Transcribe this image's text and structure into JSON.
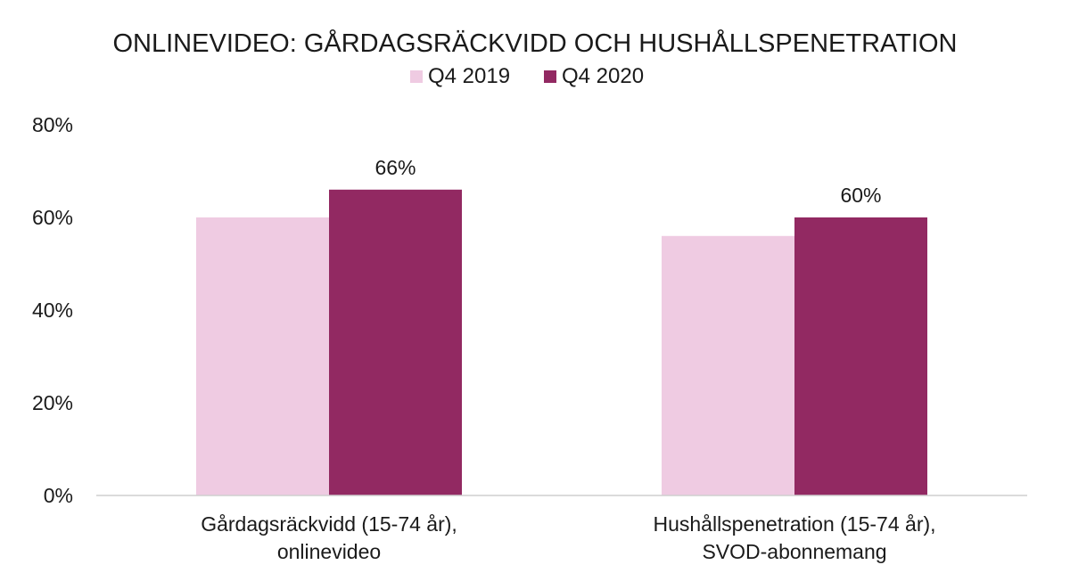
{
  "chart_data": {
    "type": "bar",
    "title": "ONLINEVIDEO: GÅRDAGSRÄCKVIDD OCH HUSHÅLLSPENETRATION",
    "categories": [
      [
        "Gårdagsräckvidd (15-74 år),",
        "onlinevideo"
      ],
      [
        "Hushållspenetration (15-74 år),",
        "SVOD-abonnemang"
      ]
    ],
    "series": [
      {
        "name": "Q4 2019",
        "values": [
          60,
          56
        ],
        "color": "#efcbe2",
        "data_labels": [
          "",
          ""
        ]
      },
      {
        "name": "Q4 2020",
        "values": [
          66,
          60
        ],
        "color": "#922962",
        "data_labels": [
          "66%",
          "60%"
        ]
      }
    ],
    "ylim": [
      0,
      80
    ],
    "yticks": [
      0,
      20,
      40,
      60,
      80
    ],
    "ytick_labels": [
      "0%",
      "20%",
      "40%",
      "60%",
      "80%"
    ],
    "grid": false,
    "legend_position": "top"
  }
}
